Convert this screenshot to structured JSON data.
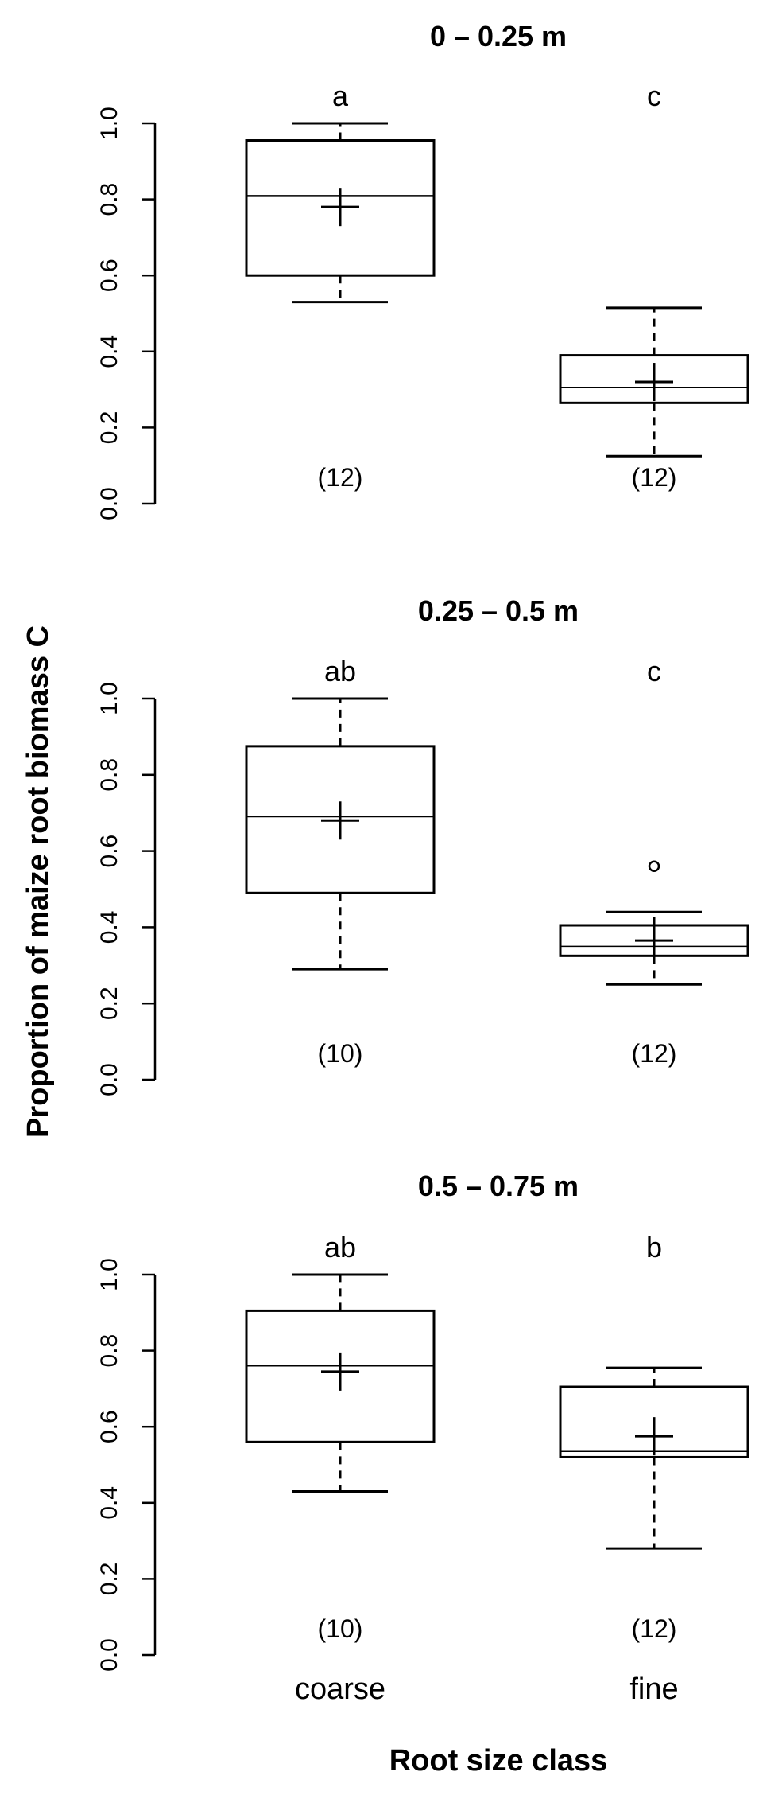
{
  "chart_data": {
    "type": "boxplot",
    "ylabel": "Proportion of maize root biomass C",
    "xlabel": "Root size class",
    "categories": [
      "coarse",
      "fine"
    ],
    "ylim": [
      0.0,
      1.0
    ],
    "yticks": [
      "0.0",
      "0.2",
      "0.4",
      "0.6",
      "0.8",
      "1.0"
    ],
    "panels": [
      {
        "title": "0 – 0.25 m",
        "boxes": [
          {
            "category": "coarse",
            "min": 0.53,
            "q1": 0.6,
            "median": 0.81,
            "q3": 0.955,
            "max": 1.0,
            "mean": 0.78,
            "outliers": [],
            "letter": "a",
            "n": "(12)"
          },
          {
            "category": "fine",
            "min": 0.125,
            "q1": 0.265,
            "median": 0.305,
            "q3": 0.39,
            "max": 0.515,
            "mean": 0.32,
            "outliers": [],
            "letter": "c",
            "n": "(12)"
          }
        ]
      },
      {
        "title": "0.25 – 0.5 m",
        "boxes": [
          {
            "category": "coarse",
            "min": 0.29,
            "q1": 0.49,
            "median": 0.69,
            "q3": 0.875,
            "max": 1.0,
            "mean": 0.68,
            "outliers": [],
            "letter": "ab",
            "n": "(10)"
          },
          {
            "category": "fine",
            "min": 0.25,
            "q1": 0.325,
            "median": 0.35,
            "q3": 0.405,
            "max": 0.44,
            "mean": 0.365,
            "outliers": [
              0.56
            ],
            "letter": "c",
            "n": "(12)"
          }
        ]
      },
      {
        "title": "0.5 – 0.75 m",
        "boxes": [
          {
            "category": "coarse",
            "min": 0.43,
            "q1": 0.56,
            "median": 0.76,
            "q3": 0.905,
            "max": 1.0,
            "mean": 0.745,
            "outliers": [],
            "letter": "ab",
            "n": "(10)"
          },
          {
            "category": "fine",
            "min": 0.28,
            "q1": 0.52,
            "median": 0.535,
            "q3": 0.705,
            "max": 0.755,
            "mean": 0.575,
            "outliers": [],
            "letter": "b",
            "n": "(12)"
          }
        ]
      }
    ]
  }
}
